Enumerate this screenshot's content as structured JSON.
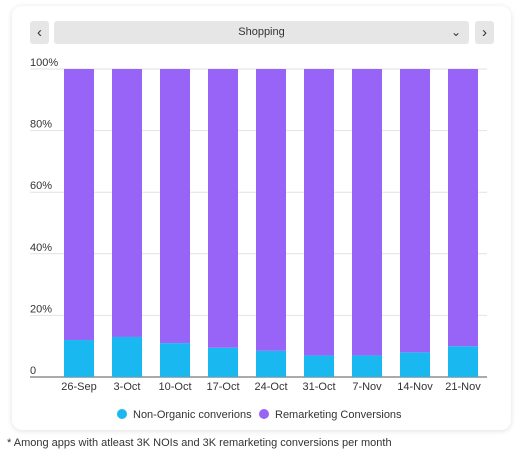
{
  "controls": {
    "prev_icon": "chevron-left-icon",
    "next_icon": "chevron-right-icon",
    "dropdown_icon": "chevron-down-icon",
    "selected_option": "Shopping"
  },
  "chart_data": {
    "type": "bar",
    "stacked": true,
    "normalized": true,
    "categories": [
      "26-Sep",
      "3-Oct",
      "10-Oct",
      "17-Oct",
      "24-Oct",
      "31-Oct",
      "7-Nov",
      "14-Nov",
      "21-Nov"
    ],
    "series": [
      {
        "name": "Non-Organic converions",
        "color": "#1ab8f0",
        "values": [
          12,
          13,
          11,
          9.5,
          8.5,
          7,
          7,
          8,
          10
        ]
      },
      {
        "name": "Remarketing Conversions",
        "color": "#9864f7",
        "values": [
          88,
          87,
          89,
          90.5,
          91.5,
          93,
          93,
          92,
          90
        ]
      }
    ],
    "yticks": [
      "0",
      "20%",
      "40%",
      "60%",
      "80%",
      "100%"
    ],
    "ylim": [
      0,
      100
    ],
    "grid": true,
    "legend_position": "bottom"
  },
  "footnote": "* Among apps with atleast 3K NOIs and 3K remarketing conversions per month"
}
